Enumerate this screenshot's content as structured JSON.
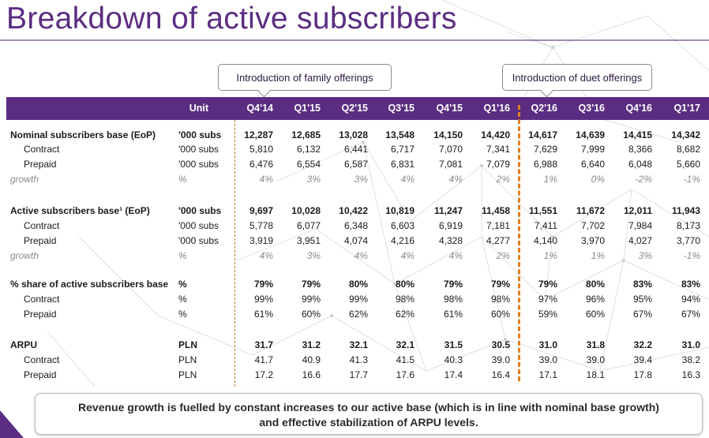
{
  "title": "Breakdown of active subscribers",
  "callouts": {
    "family": "Introduction of family offerings",
    "duet": "Introduction of duet offerings"
  },
  "header": {
    "unit": "Unit",
    "quarters": [
      "Q4'14",
      "Q1'15",
      "Q2'15",
      "Q3'15",
      "Q4'15",
      "Q1'16",
      "Q2'16",
      "Q3'16",
      "Q4'16",
      "Q1'17"
    ]
  },
  "rows": [
    {
      "label": "Nominal subscribers base (EoP)",
      "unit": "'000 subs",
      "style": "main",
      "values": [
        "12,287",
        "12,685",
        "13,028",
        "13,548",
        "14,150",
        "14,420",
        "14,617",
        "14,639",
        "14,415",
        "14,342"
      ]
    },
    {
      "label": "Contract",
      "unit": "'000 subs",
      "style": "sub",
      "values": [
        "5,810",
        "6,132",
        "6,441",
        "6,717",
        "7,070",
        "7,341",
        "7,629",
        "7,999",
        "8,366",
        "8,682"
      ]
    },
    {
      "label": "Prepaid",
      "unit": "'000 subs",
      "style": "sub",
      "values": [
        "6,476",
        "6,554",
        "6,587",
        "6,831",
        "7,081",
        "7,079",
        "6,988",
        "6,640",
        "6,048",
        "5,660"
      ]
    },
    {
      "label": "growth",
      "unit": "%",
      "style": "growth",
      "values": [
        "4%",
        "3%",
        "3%",
        "4%",
        "4%",
        "2%",
        "1%",
        "0%",
        "-2%",
        "-1%"
      ]
    },
    {
      "label": "Active subscribers base¹ (EoP)",
      "unit": "'000 subs",
      "style": "main",
      "values": [
        "9,697",
        "10,028",
        "10,422",
        "10,819",
        "11,247",
        "11,458",
        "11,551",
        "11,672",
        "12,011",
        "11,943"
      ]
    },
    {
      "label": "Contract",
      "unit": "'000 subs",
      "style": "sub",
      "values": [
        "5,778",
        "6,077",
        "6,348",
        "6,603",
        "6,919",
        "7,181",
        "7,411",
        "7,702",
        "7,984",
        "8,173"
      ]
    },
    {
      "label": "Prepaid",
      "unit": "'000 subs",
      "style": "sub",
      "values": [
        "3,919",
        "3,951",
        "4,074",
        "4,216",
        "4,328",
        "4,277",
        "4,140",
        "3,970",
        "4,027",
        "3,770"
      ]
    },
    {
      "label": "growth",
      "unit": "%",
      "style": "growth",
      "values": [
        "4%",
        "3%",
        "4%",
        "4%",
        "4%",
        "2%",
        "1%",
        "1%",
        "3%",
        "-1%"
      ]
    },
    {
      "label": "% share of active subscribers base",
      "unit": "%",
      "style": "main",
      "values": [
        "79%",
        "79%",
        "80%",
        "80%",
        "79%",
        "79%",
        "79%",
        "80%",
        "83%",
        "83%"
      ]
    },
    {
      "label": "Contract",
      "unit": "%",
      "style": "sub",
      "values": [
        "99%",
        "99%",
        "99%",
        "98%",
        "98%",
        "98%",
        "97%",
        "96%",
        "95%",
        "94%"
      ]
    },
    {
      "label": "Prepaid",
      "unit": "%",
      "style": "sub",
      "values": [
        "61%",
        "60%",
        "62%",
        "62%",
        "61%",
        "60%",
        "59%",
        "60%",
        "67%",
        "67%"
      ]
    },
    {
      "label": "ARPU",
      "unit": "PLN",
      "style": "main",
      "values": [
        "31.7",
        "31.2",
        "32.1",
        "32.1",
        "31.5",
        "30.5",
        "31.0",
        "31.8",
        "32.2",
        "31.0"
      ]
    },
    {
      "label": "Contract",
      "unit": "PLN",
      "style": "sub",
      "values": [
        "41.7",
        "40.9",
        "41.3",
        "41.5",
        "40.3",
        "39.0",
        "39.0",
        "39.0",
        "39.4",
        "38.2"
      ]
    },
    {
      "label": "Prepaid",
      "unit": "PLN",
      "style": "sub",
      "values": [
        "17.2",
        "16.6",
        "17.7",
        "17.6",
        "17.4",
        "16.4",
        "17.1",
        "18.1",
        "17.8",
        "16.3"
      ]
    }
  ],
  "footer": {
    "line1": "Revenue growth is fuelled by constant increases to our active base (which is in line with nominal base growth)",
    "line2": "and effective stabilization of ARPU levels."
  },
  "colors": {
    "brand": "#5b2d82",
    "divider": "#e07d1c"
  }
}
